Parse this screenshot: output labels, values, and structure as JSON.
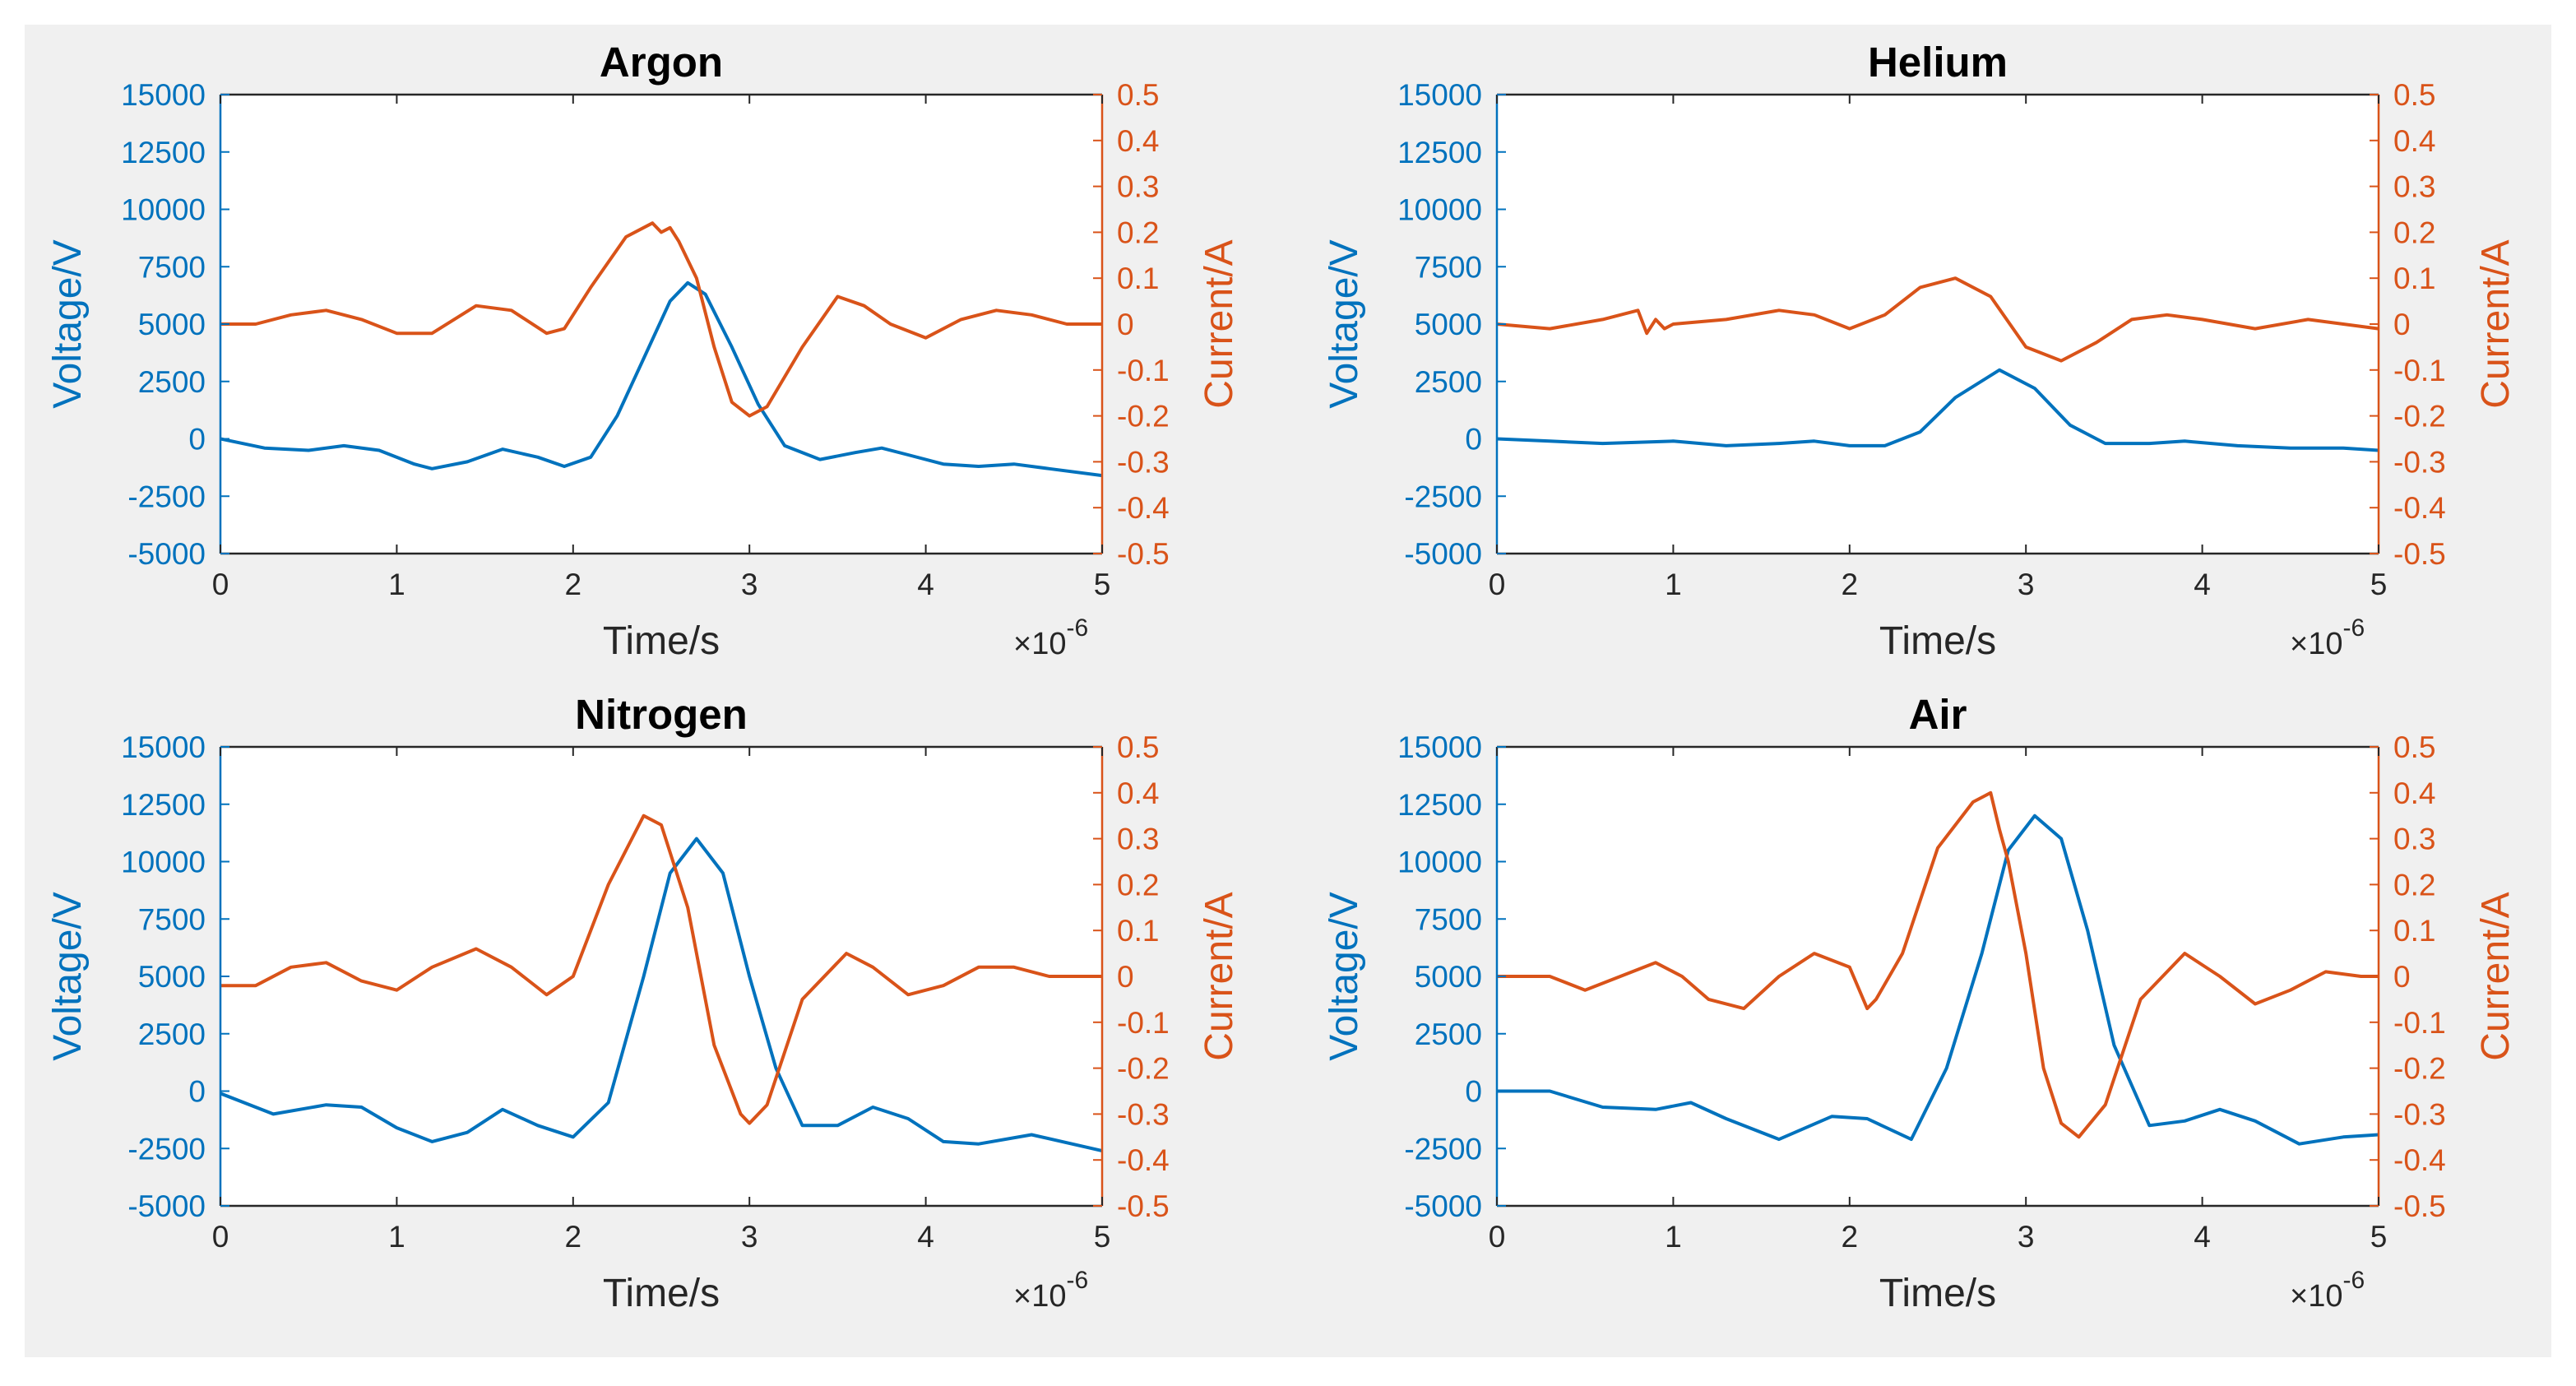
{
  "figure": {
    "background": "#f0f0f0",
    "left_axis_color": "#0072bd",
    "right_axis_color": "#d95319",
    "xtick_color": "#262626"
  },
  "chart_data": [
    {
      "type": "line",
      "title": "Argon",
      "xlabel": "Time/s",
      "x_multiplier": "×10",
      "x_exponent": "-6",
      "ylabel_left": "Voltage/V",
      "ylabel_right": "Current/A",
      "xlim": [
        0,
        5
      ],
      "ylim_left": [
        -5000,
        15000
      ],
      "ylim_right": [
        -0.5,
        0.5
      ],
      "xticks": [
        "0",
        "1",
        "2",
        "3",
        "4",
        "5"
      ],
      "yticks_left": [
        "-5000",
        "-2500",
        "0",
        "2500",
        "5000",
        "7500",
        "10000",
        "12500",
        "15000"
      ],
      "yticks_right": [
        "-0.5",
        "-0.4",
        "-0.3",
        "-0.2",
        "-0.1",
        "0",
        "0.1",
        "0.2",
        "0.3",
        "0.4",
        "0.5"
      ],
      "series": [
        {
          "name": "Voltage",
          "axis": "left",
          "color": "#0072bd",
          "x": [
            0,
            0.25,
            0.5,
            0.7,
            0.9,
            1.1,
            1.2,
            1.4,
            1.6,
            1.8,
            1.95,
            2.1,
            2.25,
            2.4,
            2.55,
            2.65,
            2.75,
            2.9,
            3.05,
            3.2,
            3.4,
            3.6,
            3.75,
            3.9,
            4.1,
            4.3,
            4.5,
            4.7,
            5.0
          ],
          "y": [
            0,
            -400,
            -500,
            -300,
            -500,
            -1100,
            -1300,
            -1000,
            -450,
            -800,
            -1200,
            -800,
            1000,
            3500,
            6000,
            6800,
            6300,
            4000,
            1500,
            -300,
            -900,
            -600,
            -400,
            -700,
            -1100,
            -1200,
            -1100,
            -1300,
            -1600
          ]
        },
        {
          "name": "Current",
          "axis": "right",
          "color": "#d95319",
          "x": [
            0,
            0.2,
            0.4,
            0.6,
            0.8,
            1.0,
            1.2,
            1.45,
            1.65,
            1.85,
            1.95,
            2.1,
            2.3,
            2.45,
            2.5,
            2.55,
            2.6,
            2.7,
            2.8,
            2.9,
            3.0,
            3.1,
            3.3,
            3.5,
            3.65,
            3.8,
            4.0,
            4.2,
            4.4,
            4.6,
            4.8,
            5.0
          ],
          "y": [
            0,
            0,
            0.02,
            0.03,
            0.01,
            -0.02,
            -0.02,
            0.04,
            0.03,
            -0.02,
            -0.01,
            0.08,
            0.19,
            0.22,
            0.2,
            0.21,
            0.18,
            0.1,
            -0.05,
            -0.17,
            -0.2,
            -0.18,
            -0.05,
            0.06,
            0.04,
            0.0,
            -0.03,
            0.01,
            0.03,
            0.02,
            0.0,
            0.0
          ]
        }
      ]
    },
    {
      "type": "line",
      "title": "Helium",
      "xlabel": "Time/s",
      "x_multiplier": "×10",
      "x_exponent": "-6",
      "ylabel_left": "Voltage/V",
      "ylabel_right": "Current/A",
      "xlim": [
        0,
        5
      ],
      "ylim_left": [
        -5000,
        15000
      ],
      "ylim_right": [
        -0.5,
        0.5
      ],
      "xticks": [
        "0",
        "1",
        "2",
        "3",
        "4",
        "5"
      ],
      "yticks_left": [
        "-5000",
        "-2500",
        "0",
        "2500",
        "5000",
        "7500",
        "10000",
        "12500",
        "15000"
      ],
      "yticks_right": [
        "-0.5",
        "-0.4",
        "-0.3",
        "-0.2",
        "-0.1",
        "0",
        "0.1",
        "0.2",
        "0.3",
        "0.4",
        "0.5"
      ],
      "series": [
        {
          "name": "Voltage",
          "axis": "left",
          "color": "#0072bd",
          "x": [
            0,
            0.3,
            0.6,
            1.0,
            1.3,
            1.6,
            1.8,
            2.0,
            2.2,
            2.4,
            2.6,
            2.85,
            3.05,
            3.25,
            3.45,
            3.7,
            3.9,
            4.2,
            4.5,
            4.8,
            5.0
          ],
          "y": [
            0,
            -100,
            -200,
            -100,
            -300,
            -200,
            -100,
            -300,
            -300,
            300,
            1800,
            3000,
            2200,
            600,
            -200,
            -200,
            -100,
            -300,
            -400,
            -400,
            -500
          ]
        },
        {
          "name": "Current",
          "axis": "right",
          "color": "#d95319",
          "x": [
            0,
            0.3,
            0.6,
            0.8,
            0.85,
            0.9,
            0.95,
            1.0,
            1.3,
            1.6,
            1.8,
            2.0,
            2.2,
            2.4,
            2.6,
            2.8,
            3.0,
            3.2,
            3.4,
            3.6,
            3.8,
            4.0,
            4.3,
            4.6,
            5.0
          ],
          "y": [
            0,
            -0.01,
            0.01,
            0.03,
            -0.02,
            0.01,
            -0.01,
            0.0,
            0.01,
            0.03,
            0.02,
            -0.01,
            0.02,
            0.08,
            0.1,
            0.06,
            -0.05,
            -0.08,
            -0.04,
            0.01,
            0.02,
            0.01,
            -0.01,
            0.01,
            -0.01
          ]
        }
      ]
    },
    {
      "type": "line",
      "title": "Nitrogen",
      "xlabel": "Time/s",
      "x_multiplier": "×10",
      "x_exponent": "-6",
      "ylabel_left": "Voltage/V",
      "ylabel_right": "Current/A",
      "xlim": [
        0,
        5
      ],
      "ylim_left": [
        -5000,
        15000
      ],
      "ylim_right": [
        -0.5,
        0.5
      ],
      "xticks": [
        "0",
        "1",
        "2",
        "3",
        "4",
        "5"
      ],
      "yticks_left": [
        "-5000",
        "-2500",
        "0",
        "2500",
        "5000",
        "7500",
        "10000",
        "12500",
        "15000"
      ],
      "yticks_right": [
        "-0.5",
        "-0.4",
        "-0.3",
        "-0.2",
        "-0.1",
        "0",
        "0.1",
        "0.2",
        "0.3",
        "0.4",
        "0.5"
      ],
      "series": [
        {
          "name": "Voltage",
          "axis": "left",
          "color": "#0072bd",
          "x": [
            0,
            0.3,
            0.6,
            0.8,
            1.0,
            1.2,
            1.4,
            1.6,
            1.8,
            2.0,
            2.2,
            2.4,
            2.55,
            2.7,
            2.85,
            3.0,
            3.15,
            3.3,
            3.5,
            3.7,
            3.9,
            4.1,
            4.3,
            4.6,
            5.0
          ],
          "y": [
            -100,
            -1000,
            -600,
            -700,
            -1600,
            -2200,
            -1800,
            -800,
            -1500,
            -2000,
            -500,
            5000,
            9500,
            11000,
            9500,
            5000,
            1000,
            -1500,
            -1500,
            -700,
            -1200,
            -2200,
            -2300,
            -1900,
            -2600
          ]
        },
        {
          "name": "Current",
          "axis": "right",
          "color": "#d95319",
          "x": [
            0,
            0.2,
            0.4,
            0.6,
            0.8,
            1.0,
            1.2,
            1.45,
            1.65,
            1.85,
            2.0,
            2.2,
            2.4,
            2.5,
            2.65,
            2.8,
            2.95,
            3.0,
            3.1,
            3.3,
            3.55,
            3.7,
            3.9,
            4.1,
            4.3,
            4.5,
            4.7,
            5.0
          ],
          "y": [
            -0.02,
            -0.02,
            0.02,
            0.03,
            -0.01,
            -0.03,
            0.02,
            0.06,
            0.02,
            -0.04,
            0.0,
            0.2,
            0.35,
            0.33,
            0.15,
            -0.15,
            -0.3,
            -0.32,
            -0.28,
            -0.05,
            0.05,
            0.02,
            -0.04,
            -0.02,
            0.02,
            0.02,
            0.0,
            0.0
          ]
        }
      ]
    },
    {
      "type": "line",
      "title": "Air",
      "xlabel": "Time/s",
      "x_multiplier": "×10",
      "x_exponent": "-6",
      "ylabel_left": "Voltage/V",
      "ylabel_right": "Current/A",
      "xlim": [
        0,
        5
      ],
      "ylim_left": [
        -5000,
        15000
      ],
      "ylim_right": [
        -0.5,
        0.5
      ],
      "xticks": [
        "0",
        "1",
        "2",
        "3",
        "4",
        "5"
      ],
      "yticks_left": [
        "-5000",
        "-2500",
        "0",
        "2500",
        "5000",
        "7500",
        "10000",
        "12500",
        "15000"
      ],
      "yticks_right": [
        "-0.5",
        "-0.4",
        "-0.3",
        "-0.2",
        "-0.1",
        "0",
        "0.1",
        "0.2",
        "0.3",
        "0.4",
        "0.5"
      ],
      "series": [
        {
          "name": "Voltage",
          "axis": "left",
          "color": "#0072bd",
          "x": [
            0,
            0.3,
            0.6,
            0.9,
            1.1,
            1.3,
            1.6,
            1.9,
            2.1,
            2.35,
            2.55,
            2.75,
            2.9,
            3.05,
            3.2,
            3.35,
            3.5,
            3.7,
            3.9,
            4.1,
            4.3,
            4.55,
            4.8,
            5.0
          ],
          "y": [
            0,
            0,
            -700,
            -800,
            -500,
            -1200,
            -2100,
            -1100,
            -1200,
            -2100,
            1000,
            6000,
            10500,
            12000,
            11000,
            7000,
            2000,
            -1500,
            -1300,
            -800,
            -1300,
            -2300,
            -2000,
            -1900
          ]
        },
        {
          "name": "Current",
          "axis": "right",
          "color": "#d95319",
          "x": [
            0,
            0.3,
            0.5,
            0.7,
            0.9,
            1.05,
            1.2,
            1.4,
            1.6,
            1.8,
            2.0,
            2.1,
            2.15,
            2.3,
            2.5,
            2.7,
            2.8,
            2.85,
            2.9,
            3.0,
            3.1,
            3.2,
            3.3,
            3.45,
            3.65,
            3.9,
            4.1,
            4.3,
            4.5,
            4.7,
            4.9,
            5.0
          ],
          "y": [
            0,
            0,
            -0.03,
            0.0,
            0.03,
            0.0,
            -0.05,
            -0.07,
            0.0,
            0.05,
            0.02,
            -0.07,
            -0.05,
            0.05,
            0.28,
            0.38,
            0.4,
            0.32,
            0.25,
            0.05,
            -0.2,
            -0.32,
            -0.35,
            -0.28,
            -0.05,
            0.05,
            0.0,
            -0.06,
            -0.03,
            0.01,
            0.0,
            0.0
          ]
        }
      ]
    }
  ]
}
